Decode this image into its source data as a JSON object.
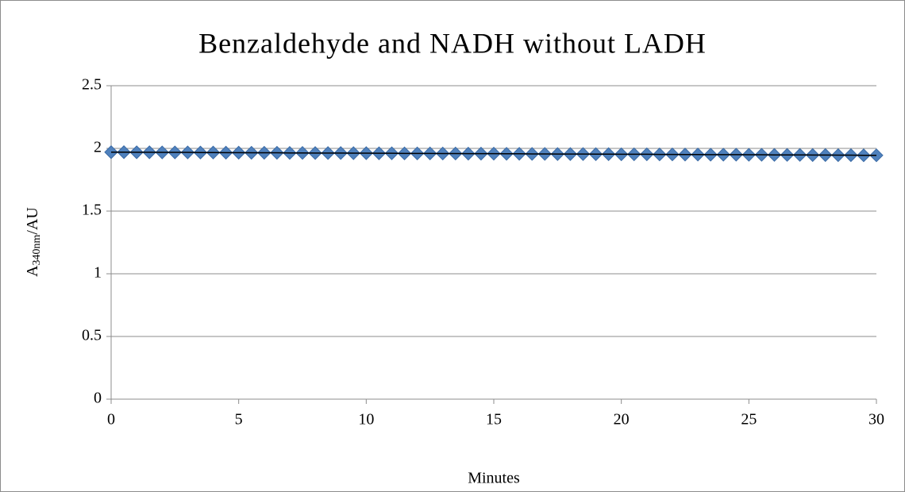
{
  "chart_data": {
    "type": "scatter",
    "title": "Benzaldehyde and NADH without LADH",
    "x_label": "Minutes",
    "y_label": {
      "main": "A",
      "sub": "340nm",
      "unit": "/AU"
    },
    "x": [
      0,
      0.5,
      1,
      1.5,
      2,
      2.5,
      3,
      3.5,
      4,
      4.5,
      5,
      5.5,
      6,
      6.5,
      7,
      7.5,
      8,
      8.5,
      9,
      9.5,
      10,
      10.5,
      11,
      11.5,
      12,
      12.5,
      13,
      13.5,
      14,
      14.5,
      15,
      15.5,
      16,
      16.5,
      17,
      17.5,
      18,
      18.5,
      19,
      19.5,
      20,
      20.5,
      21,
      21.5,
      22,
      22.5,
      23,
      23.5,
      24,
      24.5,
      25,
      25.5,
      26,
      26.5,
      27,
      27.5,
      28,
      28.5,
      29,
      29.5,
      30
    ],
    "series": [
      {
        "color": "#4f81bd",
        "line_color": "#000000",
        "values": [
          1.97,
          1.97,
          1.969,
          1.969,
          1.968,
          1.968,
          1.968,
          1.967,
          1.967,
          1.966,
          1.966,
          1.965,
          1.965,
          1.965,
          1.964,
          1.964,
          1.963,
          1.963,
          1.963,
          1.962,
          1.962,
          1.961,
          1.961,
          1.96,
          1.96,
          1.96,
          1.959,
          1.959,
          1.958,
          1.958,
          1.958,
          1.957,
          1.957,
          1.956,
          1.956,
          1.955,
          1.955,
          1.955,
          1.954,
          1.954,
          1.953,
          1.953,
          1.953,
          1.952,
          1.952,
          1.951,
          1.951,
          1.95,
          1.95,
          1.95,
          1.949,
          1.949,
          1.948,
          1.948,
          1.948,
          1.947,
          1.947,
          1.946,
          1.946,
          1.945,
          1.945
        ]
      }
    ],
    "xlim": [
      0,
      30
    ],
    "xticks": [
      0,
      5,
      10,
      15,
      20,
      25,
      30
    ],
    "ylim": [
      0,
      2.5
    ],
    "yticks": [
      0,
      0.5,
      1,
      1.5,
      2,
      2.5
    ],
    "grid": true
  }
}
